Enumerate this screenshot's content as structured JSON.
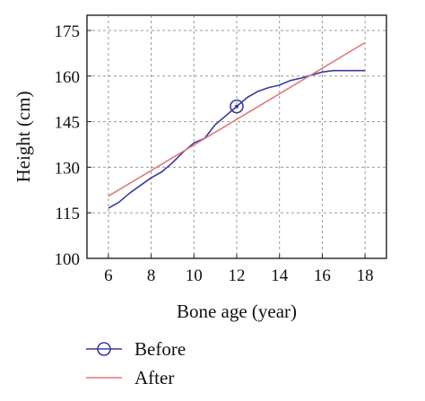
{
  "chart_data": {
    "type": "line",
    "xlabel": "Bone age (year)",
    "ylabel": "Height (cm)",
    "xlim": [
      5,
      19
    ],
    "ylim": [
      100,
      180
    ],
    "xticks": [
      6,
      8,
      10,
      12,
      14,
      16,
      18
    ],
    "yticks": [
      100,
      115,
      130,
      145,
      160,
      175
    ],
    "grid": true,
    "legend_placement": "bottom-left",
    "series": [
      {
        "name": "Before",
        "color": "#3a3aa0",
        "marker": "circle-dot",
        "marker_index": 12,
        "x": [
          6,
          6.5,
          7,
          7.5,
          8,
          8.5,
          9,
          9.5,
          10,
          10.5,
          11,
          11.5,
          12,
          12.5,
          13,
          13.5,
          14,
          14.5,
          15,
          15.5,
          16,
          16.5,
          17,
          17.5,
          18
        ],
        "y": [
          116.5,
          118.5,
          121.5,
          124,
          126.5,
          128.5,
          131.5,
          135,
          138,
          139.5,
          144,
          147,
          150,
          153,
          155,
          156.2,
          157,
          158.5,
          159.3,
          160.3,
          161.3,
          161.8,
          161.8,
          161.8,
          161.8
        ]
      },
      {
        "name": "After",
        "color": "#e07a7a",
        "x": [
          6,
          18
        ],
        "y": [
          120.5,
          171
        ]
      }
    ]
  }
}
